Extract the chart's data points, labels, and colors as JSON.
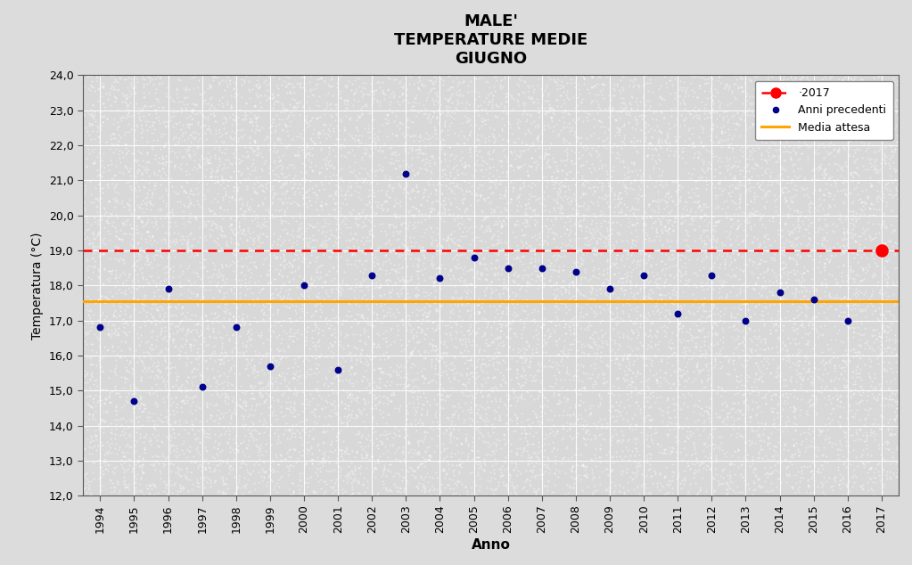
{
  "title": "MALE'\nTEMPERATURE MEDIE\nGIUGNO",
  "xlabel": "Anno",
  "ylabel": "Temperatura (°C)",
  "background_color": "#e8e8e8",
  "plot_bg_color": "#e0e0e0",
  "years": [
    1994,
    1995,
    1996,
    1997,
    1998,
    1999,
    2000,
    2001,
    2002,
    2003,
    2004,
    2005,
    2006,
    2007,
    2008,
    2009,
    2010,
    2011,
    2012,
    2013,
    2014,
    2015,
    2016
  ],
  "temps": [
    16.8,
    14.7,
    17.9,
    15.1,
    16.8,
    15.7,
    18.0,
    15.6,
    18.3,
    21.2,
    18.2,
    18.8,
    18.5,
    18.5,
    18.4,
    17.9,
    18.3,
    17.2,
    18.3,
    17.0,
    17.8,
    17.6,
    17.0
  ],
  "year_2017": 2017,
  "temp_2017": 19.0,
  "media_attesa": 17.55,
  "ylim": [
    12.0,
    24.0
  ],
  "yticks": [
    12.0,
    13.0,
    14.0,
    15.0,
    16.0,
    17.0,
    18.0,
    19.0,
    20.0,
    21.0,
    22.0,
    23.0,
    24.0
  ],
  "xlim": [
    1993.5,
    2017.5
  ],
  "xticks": [
    1994,
    1995,
    1996,
    1997,
    1998,
    1999,
    2000,
    2001,
    2002,
    2003,
    2004,
    2005,
    2006,
    2007,
    2008,
    2009,
    2010,
    2011,
    2012,
    2013,
    2014,
    2015,
    2016,
    2017
  ],
  "dot_color_prev": "#00008B",
  "dot_color_2017": "#FF0000",
  "line_2017_color": "#FF0000",
  "line_media_color": "#FFA500",
  "legend_loc": "upper right",
  "grid_color": "#ffffff",
  "spine_color": "#555555"
}
